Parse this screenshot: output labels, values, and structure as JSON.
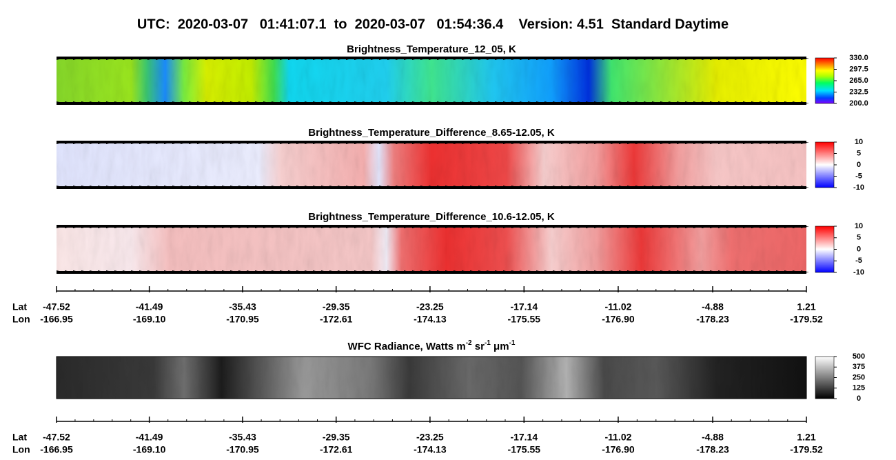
{
  "title": "UTC:  2020-03-07   01:41:07.1  to  2020-03-07   01:54:36.4    Version: 4.51  Standard Daytime",
  "chart_data": [
    {
      "type": "image",
      "title": "Brightness_Temperature_12_05, K",
      "colormap": "rainbow",
      "clim": [
        200,
        330
      ],
      "cticks": [
        {
          "value": 330,
          "label": "330.0"
        },
        {
          "value": 297.5,
          "label": "297.5"
        },
        {
          "value": 265,
          "label": "265.0"
        },
        {
          "value": 232.5,
          "label": "232.5"
        },
        {
          "value": 200,
          "label": "200.0"
        }
      ]
    },
    {
      "type": "image",
      "title": "Brightness_Temperature_Difference_8.65-12.05, K",
      "colormap": "diverging",
      "clim": [
        -10,
        10
      ],
      "cticks": [
        10,
        5,
        0,
        -5,
        -10
      ]
    },
    {
      "type": "image",
      "title": "Brightness_Temperature_Difference_10.6-12.05, K",
      "colormap": "diverging",
      "clim": [
        -10,
        10
      ],
      "cticks": [
        10,
        5,
        0,
        -5,
        -10
      ]
    },
    {
      "type": "axis",
      "row_labels": [
        "Lat",
        "Lon"
      ],
      "xlim": [
        -47.52,
        1.21
      ],
      "xticks": [
        -47.52,
        -41.49,
        -35.43,
        -29.35,
        -23.25,
        -17.14,
        -11.02,
        -4.88,
        1.21
      ],
      "lon_ticks": [
        -166.95,
        {
          "value": -169.1,
          "label": "-169.10"
        },
        -170.95,
        -172.61,
        -174.13,
        -175.55,
        {
          "value": -176.9,
          "label": "-176.90"
        },
        -178.23,
        -179.52
      ]
    },
    {
      "type": "image",
      "title": [
        "WFC Radiance, Watts m",
        "-2",
        " sr",
        "-1",
        " μm",
        "-1"
      ],
      "colormap": "gray",
      "clim": [
        0,
        500
      ],
      "cticks": [
        500,
        375,
        250,
        125,
        0
      ]
    },
    {
      "type": "axis",
      "row_labels": [
        "Lat",
        "Lon"
      ],
      "xlim": [
        -47.52,
        1.21
      ],
      "xticks": [
        -47.52,
        -41.49,
        -35.43,
        -29.35,
        -23.25,
        -17.14,
        -11.02,
        -4.88,
        1.21
      ],
      "lon_ticks": [
        -166.95,
        {
          "value": -169.1,
          "label": "-169.10"
        },
        -170.95,
        -172.61,
        -174.13,
        -175.55,
        {
          "value": -176.9,
          "label": "-176.90"
        },
        -178.23,
        -179.52
      ]
    }
  ]
}
